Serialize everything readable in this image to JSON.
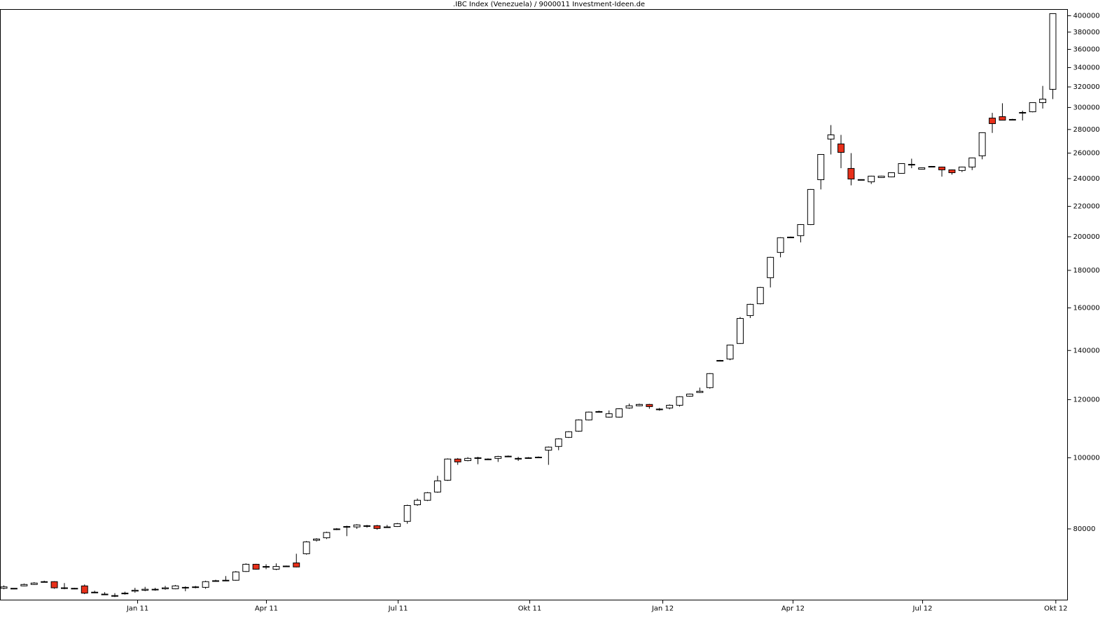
{
  "chart_data": {
    "type": "candlestick",
    "title": ".IBC Index (Venezuela) / 9000011 Investment-Ideen.de",
    "x": [
      0,
      1,
      2,
      3,
      4,
      5,
      6,
      7,
      8,
      9,
      10,
      11,
      12,
      13,
      14,
      15,
      16,
      17,
      18,
      19,
      20,
      21,
      22,
      23,
      24,
      25,
      26,
      27,
      28,
      29,
      30,
      31,
      32,
      33,
      34,
      35,
      36,
      37,
      38,
      39,
      40,
      41,
      42,
      43,
      44,
      45,
      46,
      47,
      48,
      49,
      50,
      51,
      52,
      53,
      54,
      55,
      56,
      57,
      58,
      59,
      60,
      61,
      62,
      63,
      64,
      65,
      66,
      67,
      68,
      69,
      70,
      71,
      72,
      73,
      74,
      75,
      76,
      77,
      78,
      79,
      80,
      81,
      82,
      83,
      84,
      85,
      86,
      87,
      88,
      89,
      90,
      91,
      92,
      93,
      94,
      95,
      96,
      97,
      98,
      99,
      100,
      101,
      102,
      103,
      104
    ],
    "open": [
      66400,
      66400,
      66900,
      67200,
      67800,
      67800,
      66500,
      66400,
      66900,
      65600,
      65200,
      64800,
      65300,
      65800,
      66000,
      66100,
      66300,
      66300,
      66500,
      66600,
      66600,
      68000,
      68000,
      68100,
      70000,
      71600,
      71000,
      70500,
      71100,
      71900,
      74000,
      77200,
      77800,
      79900,
      80500,
      80500,
      80700,
      80800,
      80400,
      80600,
      81900,
      86300,
      87500,
      89800,
      93200,
      99600,
      99100,
      99900,
      99600,
      99800,
      100400,
      99700,
      99900,
      100100,
      102400,
      103600,
      106600,
      108700,
      112600,
      115500,
      113600,
      113600,
      116900,
      117700,
      118200,
      116500,
      116900,
      117900,
      121300,
      122700,
      124600,
      135600,
      136300,
      143100,
      156200,
      162100,
      175900,
      190400,
      199700,
      200700,
      207800,
      239200,
      271700,
      267600,
      247800,
      239300,
      237600,
      240800,
      241300,
      244000,
      250500,
      247200,
      249300,
      248900,
      246700,
      246200,
      248900,
      257800,
      290200,
      291500,
      288900,
      295300,
      296000,
      304600,
      317600
    ],
    "high": [
      67000,
      66400,
      67400,
      67700,
      68000,
      67900,
      67500,
      66500,
      67200,
      65900,
      65600,
      65400,
      65700,
      66500,
      66700,
      66500,
      66900,
      67100,
      66800,
      66900,
      68000,
      68200,
      69000,
      70100,
      71800,
      71700,
      71600,
      71800,
      71300,
      74000,
      77000,
      77700,
      79300,
      80200,
      80800,
      81200,
      81000,
      81000,
      81000,
      81500,
      86300,
      88000,
      89800,
      94500,
      99800,
      99900,
      100200,
      100300,
      99800,
      100600,
      100700,
      100300,
      100200,
      100400,
      103600,
      106300,
      108700,
      112800,
      115600,
      115900,
      116000,
      116800,
      118500,
      118500,
      118400,
      116900,
      118200,
      121300,
      122300,
      124600,
      130400,
      135900,
      142600,
      155500,
      162100,
      170900,
      187800,
      199700,
      200100,
      208100,
      232300,
      259200,
      283900,
      275300,
      260000,
      239500,
      242200,
      242200,
      244800,
      251900,
      255500,
      248600,
      249700,
      249200,
      247000,
      249200,
      256400,
      277500,
      295000,
      304000,
      289500,
      297000,
      304900,
      321000,
      403000
    ],
    "low": [
      66200,
      66200,
      66800,
      67100,
      67700,
      66300,
      66200,
      66200,
      65200,
      65400,
      65000,
      64600,
      65100,
      65500,
      65800,
      65900,
      66100,
      66200,
      65800,
      66400,
      66300,
      67800,
      67900,
      68000,
      69900,
      70400,
      70500,
      70300,
      71000,
      70900,
      73800,
      76900,
      77500,
      79700,
      78200,
      80000,
      80300,
      79800,
      80300,
      80500,
      81300,
      86000,
      87300,
      89600,
      93000,
      97800,
      98900,
      98000,
      99300,
      98700,
      100200,
      99000,
      99700,
      99900,
      97800,
      102400,
      106400,
      108500,
      112400,
      115300,
      113400,
      113400,
      116600,
      117500,
      116600,
      115900,
      116400,
      117400,
      121100,
      122500,
      124200,
      135400,
      135800,
      142900,
      155000,
      161800,
      170600,
      187500,
      199400,
      196500,
      207500,
      232000,
      258900,
      248000,
      235000,
      239000,
      236000,
      240500,
      241000,
      243800,
      248000,
      246900,
      249000,
      241500,
      243000,
      245000,
      246500,
      255000,
      277000,
      288000,
      288300,
      288000,
      295500,
      299000,
      308000
    ],
    "close": [
      66700,
      66300,
      67200,
      67500,
      67800,
      66500,
      66500,
      66300,
      65400,
      65600,
      65200,
      64900,
      65400,
      66000,
      66200,
      66200,
      66500,
      66900,
      66600,
      66700,
      67800,
      67900,
      68100,
      69900,
      71600,
      70500,
      71100,
      71100,
      71200,
      71000,
      76800,
      77500,
      79100,
      80000,
      80600,
      81000,
      80800,
      80100,
      80500,
      81300,
      86100,
      87500,
      89600,
      93000,
      99600,
      98700,
      99800,
      100000,
      99600,
      100400,
      100500,
      99800,
      100000,
      100200,
      103400,
      106100,
      108500,
      112600,
      115400,
      115600,
      114800,
      116600,
      117700,
      118200,
      117400,
      116400,
      117900,
      121100,
      122100,
      123200,
      130200,
      135700,
      142400,
      154800,
      161800,
      170600,
      187500,
      199400,
      199800,
      207800,
      232000,
      258900,
      275300,
      260600,
      239700,
      239200,
      241900,
      241900,
      244500,
      251600,
      251000,
      248300,
      249400,
      246700,
      244500,
      248900,
      256100,
      277200,
      285200,
      288300,
      289000,
      295400,
      304600,
      308000,
      402700
    ],
    "up_color": "#ffffff",
    "down_color": "#e8301a",
    "xlim": [
      -0.35,
      105.46
    ],
    "xticks": [
      {
        "value": 13.26,
        "label": "Jan 11"
      },
      {
        "value": 26.03,
        "label": "Apr 11"
      },
      {
        "value": 39.09,
        "label": "Jul 11"
      },
      {
        "value": 52.14,
        "label": "Okt 11"
      },
      {
        "value": 65.33,
        "label": "Jan 12"
      },
      {
        "value": 78.24,
        "label": "Apr 12"
      },
      {
        "value": 91.09,
        "label": "Jul 12"
      },
      {
        "value": 104.3,
        "label": "Okt 12"
      }
    ],
    "ylim": [
      64000,
      408000
    ],
    "y_log_scale": true,
    "yticks": [
      80000,
      100000,
      120000,
      140000,
      160000,
      180000,
      200000,
      220000,
      240000,
      260000,
      280000,
      300000,
      320000,
      340000,
      360000,
      380000,
      400000
    ],
    "grid": false
  }
}
